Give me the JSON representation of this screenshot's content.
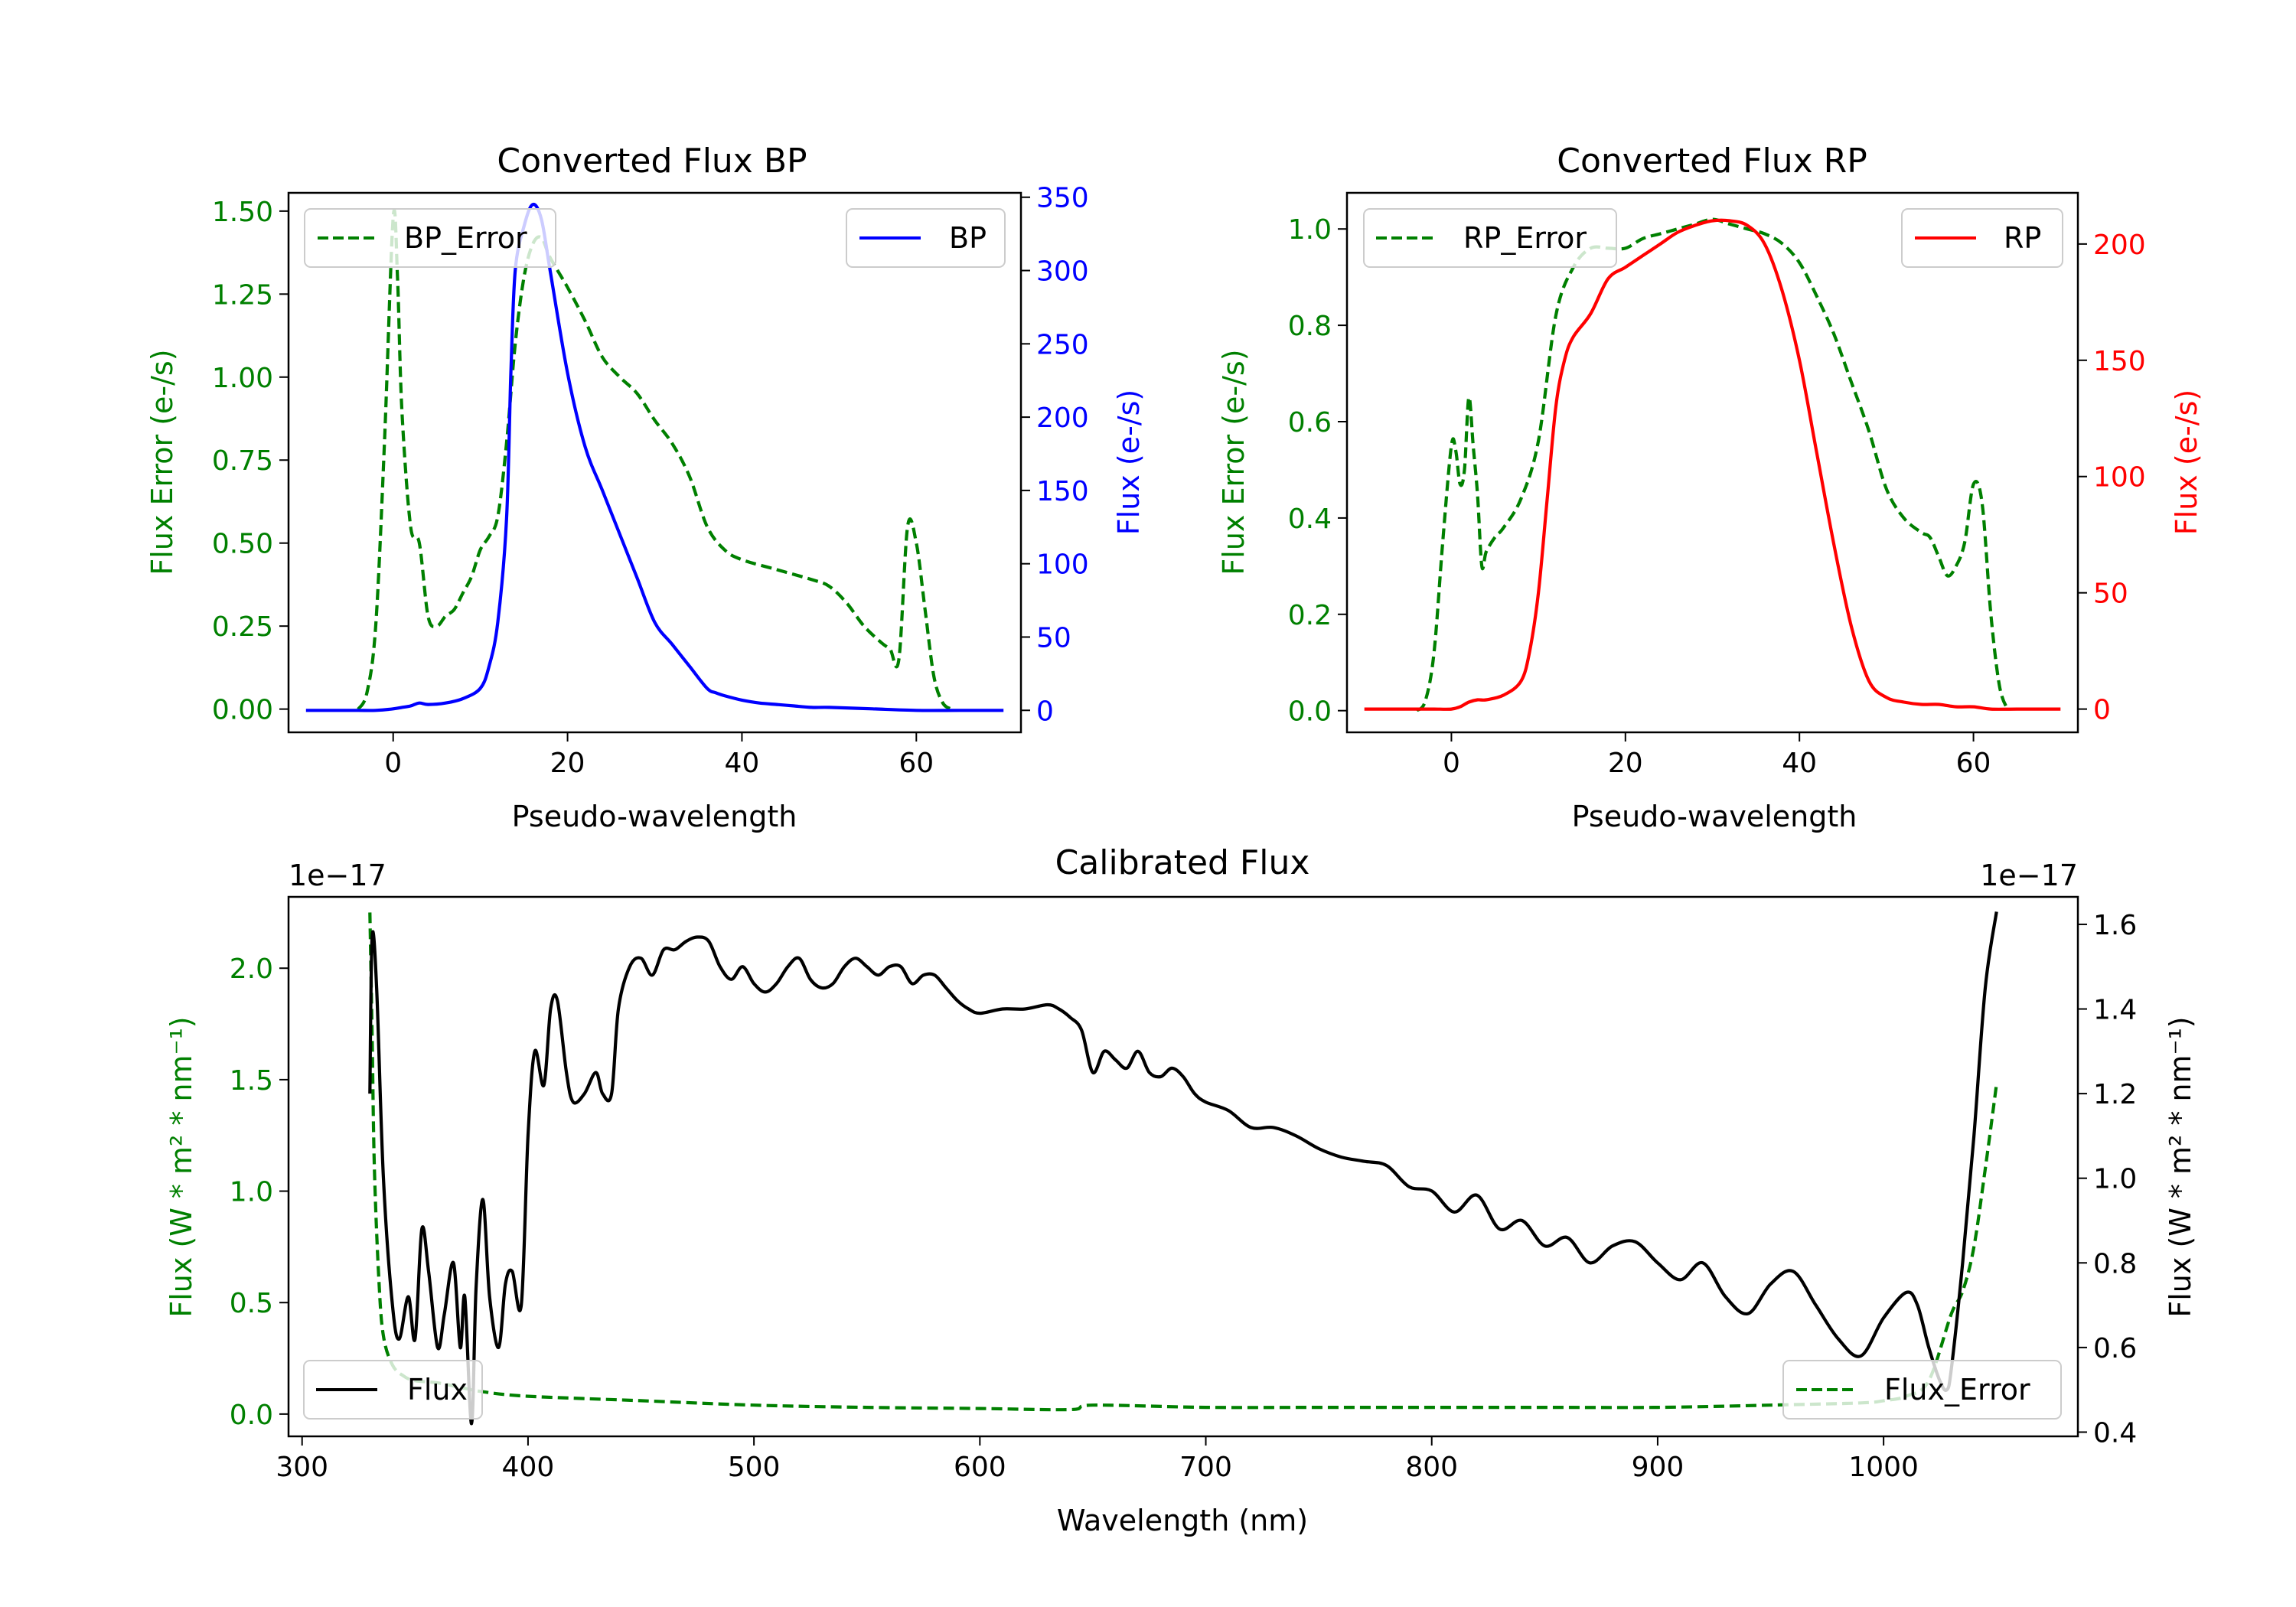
{
  "colors": {
    "green": "#008000",
    "blue": "#0000ff",
    "red": "#ff0000",
    "black": "#000000"
  },
  "chart_data": [
    {
      "id": "bp",
      "type": "line",
      "title": "Converted Flux BP",
      "xlabel": "Pseudo-wavelength",
      "ylabel_left": "Flux Error (e-/s)",
      "ylabel_right": "Flux (e-/s)",
      "xlim": [
        -12,
        72
      ],
      "ylim_left": [
        -0.07,
        1.555
      ],
      "ylim_right": [
        -15,
        353
      ],
      "xticks": [
        0,
        20,
        40,
        60
      ],
      "xtick_labels": [
        "0",
        "20",
        "40",
        "60"
      ],
      "yticks_left": [
        0,
        0.25,
        0.5,
        0.75,
        1.0,
        1.25,
        1.5
      ],
      "ytick_labels_left": [
        "0.00",
        "0.25",
        "0.50",
        "0.75",
        "1.00",
        "1.25",
        "1.50"
      ],
      "yticks_right": [
        0,
        50,
        100,
        150,
        200,
        250,
        300,
        350
      ],
      "ytick_labels_right": [
        "0",
        "50",
        "100",
        "150",
        "200",
        "250",
        "300",
        "350"
      ],
      "series": [
        {
          "name": "BP_Error",
          "axis": "left",
          "style": "dashed",
          "color": "#008000",
          "x": [
            -4,
            -3,
            -2,
            -1,
            0,
            0.5,
            1,
            2,
            3,
            4,
            5,
            6,
            7,
            8,
            9,
            10,
            11,
            12,
            13,
            14,
            15,
            16,
            17,
            18,
            20,
            22,
            24,
            26,
            28,
            30,
            32,
            34,
            36,
            38,
            40,
            44,
            48,
            50,
            52,
            54,
            56,
            57,
            58,
            59,
            60,
            61,
            62,
            63,
            64
          ],
          "y": [
            0,
            0.05,
            0.25,
            0.8,
            1.48,
            1.3,
            0.9,
            0.55,
            0.5,
            0.28,
            0.25,
            0.28,
            0.3,
            0.35,
            0.4,
            0.48,
            0.52,
            0.58,
            0.8,
            1.1,
            1.3,
            1.4,
            1.42,
            1.36,
            1.27,
            1.17,
            1.06,
            1.0,
            0.95,
            0.87,
            0.8,
            0.7,
            0.55,
            0.48,
            0.45,
            0.42,
            0.39,
            0.37,
            0.32,
            0.25,
            0.2,
            0.18,
            0.15,
            0.55,
            0.5,
            0.3,
            0.1,
            0.02,
            0
          ]
        },
        {
          "name": "BP",
          "axis": "right",
          "style": "solid",
          "color": "#0000ff",
          "x": [
            -10,
            -6,
            -4,
            -2,
            0,
            1,
            2,
            3,
            4,
            6,
            8,
            10,
            11,
            12,
            13,
            13.5,
            14,
            15,
            16,
            17,
            18,
            20,
            22,
            24,
            26,
            28,
            30,
            32,
            34,
            36,
            37,
            38,
            40,
            42,
            44,
            46,
            48,
            50,
            55,
            60,
            65,
            70
          ],
          "y": [
            0,
            0,
            0,
            0,
            1,
            2,
            3,
            5,
            4,
            5,
            8,
            15,
            30,
            60,
            130,
            230,
            300,
            330,
            345,
            335,
            300,
            230,
            180,
            150,
            120,
            90,
            60,
            45,
            30,
            15,
            12,
            10,
            7,
            5,
            4,
            3,
            2,
            2,
            1,
            0,
            0,
            0
          ]
        }
      ],
      "legend": [
        "BP_Error",
        "BP"
      ]
    },
    {
      "id": "rp",
      "type": "line",
      "title": "Converted Flux RP",
      "xlabel": "Pseudo-wavelength",
      "ylabel_left": "Flux Error (e-/s)",
      "ylabel_right": "Flux (e-/s)",
      "xlim": [
        -12,
        72
      ],
      "ylim_left": [
        -0.045,
        1.075
      ],
      "ylim_right": [
        -10,
        222
      ],
      "xticks": [
        0,
        20,
        40,
        60
      ],
      "xtick_labels": [
        "0",
        "20",
        "40",
        "60"
      ],
      "yticks_left": [
        0,
        0.2,
        0.4,
        0.6,
        0.8,
        1.0
      ],
      "ytick_labels_left": [
        "0.0",
        "0.2",
        "0.4",
        "0.6",
        "0.8",
        "1.0"
      ],
      "yticks_right": [
        0,
        50,
        100,
        150,
        200
      ],
      "ytick_labels_right": [
        "0",
        "50",
        "100",
        "150",
        "200"
      ],
      "series": [
        {
          "name": "RP_Error",
          "axis": "left",
          "style": "dashed",
          "color": "#008000",
          "x": [
            -4,
            -3,
            -2,
            -1,
            0,
            0.5,
            1,
            1.5,
            2,
            2.5,
            3,
            3.5,
            4,
            5,
            6,
            8,
            10,
            12,
            14,
            16,
            18,
            20,
            22,
            24,
            26,
            28,
            30,
            32,
            34,
            36,
            38,
            40,
            42,
            44,
            46,
            48,
            50,
            52,
            54,
            55,
            56,
            57,
            58,
            59,
            60,
            61,
            62,
            63,
            64
          ],
          "y": [
            0,
            0.02,
            0.12,
            0.35,
            0.55,
            0.54,
            0.47,
            0.5,
            0.65,
            0.55,
            0.45,
            0.3,
            0.33,
            0.36,
            0.38,
            0.44,
            0.56,
            0.82,
            0.92,
            0.96,
            0.96,
            0.96,
            0.98,
            0.99,
            1.0,
            1.01,
            1.02,
            1.01,
            1.0,
            0.99,
            0.97,
            0.93,
            0.86,
            0.78,
            0.68,
            0.58,
            0.46,
            0.4,
            0.37,
            0.36,
            0.32,
            0.28,
            0.3,
            0.35,
            0.47,
            0.43,
            0.2,
            0.05,
            0
          ]
        },
        {
          "name": "RP",
          "axis": "right",
          "style": "solid",
          "color": "#ff0000",
          "x": [
            -10,
            -6,
            -4,
            -2,
            0,
            1,
            2,
            3,
            4,
            6,
            8,
            9,
            10,
            11,
            12,
            13,
            14,
            16,
            18,
            20,
            22,
            24,
            26,
            28,
            30,
            32,
            34,
            36,
            38,
            40,
            42,
            44,
            46,
            48,
            50,
            52,
            54,
            56,
            58,
            60,
            62,
            65,
            70
          ],
          "y": [
            0,
            0,
            0,
            0,
            0,
            1,
            3,
            4,
            4,
            6,
            12,
            25,
            50,
            90,
            130,
            150,
            160,
            170,
            185,
            190,
            195,
            200,
            205,
            208,
            210,
            210,
            208,
            200,
            180,
            150,
            110,
            70,
            35,
            12,
            5,
            3,
            2,
            2,
            1,
            1,
            0,
            0,
            0
          ]
        }
      ],
      "legend": [
        "RP_Error",
        "RP"
      ]
    },
    {
      "id": "calibrated",
      "type": "line",
      "title": "Calibrated Flux",
      "xlabel": "Wavelength (nm)",
      "ylabel_left": "Flux (W * m² * nm⁻¹)",
      "ylabel_right": "Flux (W * m² * nm⁻¹)",
      "offset_left": "1e−17",
      "offset_right": "1e−17",
      "xlim": [
        294,
        1086
      ],
      "ylim_left": [
        -0.1,
        2.32
      ],
      "ylim_right": [
        0.39,
        1.665
      ],
      "xticks": [
        300,
        400,
        500,
        600,
        700,
        800,
        900,
        1000
      ],
      "xtick_labels": [
        "300",
        "400",
        "500",
        "600",
        "700",
        "800",
        "900",
        "1000"
      ],
      "yticks_left": [
        0,
        0.5,
        1.0,
        1.5,
        2.0
      ],
      "ytick_labels_left": [
        "0.0",
        "0.5",
        "1.0",
        "1.5",
        "2.0"
      ],
      "yticks_right": [
        0.4,
        0.6,
        0.8,
        1.0,
        1.2,
        1.4,
        1.6
      ],
      "ytick_labels_right": [
        "0.4",
        "0.6",
        "0.8",
        "1.0",
        "1.2",
        "1.4",
        "1.6"
      ],
      "series": [
        {
          "name": "Flux_Error",
          "axis": "left",
          "style": "dashed",
          "color": "#008000",
          "x": [
            330,
            331,
            332,
            334,
            336,
            340,
            345,
            350,
            360,
            370,
            380,
            400,
            450,
            500,
            550,
            600,
            640,
            650,
            700,
            750,
            800,
            850,
            900,
            950,
            990,
            1000,
            1010,
            1020,
            1030,
            1035,
            1040,
            1045,
            1050
          ],
          "y": [
            2.25,
            1.7,
            1.1,
            0.6,
            0.35,
            0.22,
            0.17,
            0.15,
            0.14,
            0.12,
            0.1,
            0.08,
            0.06,
            0.04,
            0.03,
            0.025,
            0.02,
            0.04,
            0.03,
            0.03,
            0.03,
            0.03,
            0.03,
            0.04,
            0.05,
            0.06,
            0.08,
            0.15,
            0.45,
            0.55,
            0.75,
            1.1,
            1.48
          ]
        },
        {
          "name": "Flux",
          "axis": "right",
          "style": "solid",
          "color": "#000000",
          "x": [
            330,
            331,
            333,
            336,
            340,
            343,
            347,
            350,
            353,
            356,
            360,
            363,
            367,
            370,
            372,
            375,
            377,
            380,
            383,
            387,
            390,
            393,
            397,
            400,
            403,
            407,
            410,
            413,
            417,
            420,
            425,
            430,
            433,
            437,
            440,
            445,
            450,
            455,
            460,
            465,
            470,
            475,
            480,
            485,
            490,
            495,
            500,
            505,
            510,
            515,
            520,
            525,
            530,
            535,
            540,
            545,
            550,
            555,
            560,
            565,
            570,
            575,
            580,
            585,
            590,
            595,
            600,
            610,
            620,
            630,
            635,
            640,
            645,
            650,
            655,
            660,
            665,
            670,
            675,
            680,
            685,
            690,
            695,
            700,
            710,
            720,
            730,
            740,
            750,
            760,
            770,
            780,
            790,
            800,
            810,
            820,
            830,
            840,
            850,
            860,
            870,
            880,
            890,
            900,
            910,
            920,
            930,
            940,
            950,
            960,
            970,
            980,
            990,
            1000,
            1010,
            1015,
            1020,
            1025,
            1028,
            1030,
            1035,
            1040,
            1045,
            1050
          ],
          "y": [
            1.2,
            1.57,
            1.45,
            1.0,
            0.7,
            0.62,
            0.72,
            0.62,
            0.88,
            0.78,
            0.6,
            0.68,
            0.8,
            0.6,
            0.72,
            0.42,
            0.74,
            0.95,
            0.72,
            0.6,
            0.75,
            0.78,
            0.7,
            1.1,
            1.3,
            1.22,
            1.4,
            1.42,
            1.25,
            1.18,
            1.2,
            1.25,
            1.2,
            1.2,
            1.4,
            1.5,
            1.52,
            1.48,
            1.54,
            1.54,
            1.56,
            1.57,
            1.56,
            1.5,
            1.47,
            1.5,
            1.46,
            1.44,
            1.46,
            1.5,
            1.52,
            1.47,
            1.45,
            1.46,
            1.5,
            1.52,
            1.5,
            1.48,
            1.5,
            1.5,
            1.46,
            1.48,
            1.48,
            1.45,
            1.42,
            1.4,
            1.39,
            1.4,
            1.4,
            1.41,
            1.4,
            1.38,
            1.35,
            1.25,
            1.3,
            1.28,
            1.26,
            1.3,
            1.25,
            1.24,
            1.26,
            1.24,
            1.2,
            1.18,
            1.16,
            1.12,
            1.12,
            1.1,
            1.07,
            1.05,
            1.04,
            1.03,
            0.98,
            0.97,
            0.92,
            0.96,
            0.88,
            0.9,
            0.84,
            0.86,
            0.8,
            0.84,
            0.85,
            0.8,
            0.76,
            0.8,
            0.72,
            0.68,
            0.75,
            0.78,
            0.7,
            0.62,
            0.58,
            0.67,
            0.73,
            0.7,
            0.6,
            0.52,
            0.5,
            0.55,
            0.8,
            1.1,
            1.45,
            1.63
          ]
        }
      ],
      "legend": [
        "Flux",
        "Flux_Error"
      ]
    }
  ]
}
